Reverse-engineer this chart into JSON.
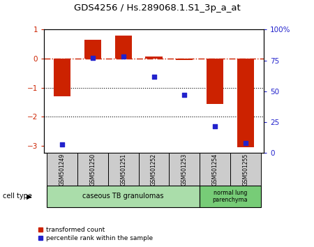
{
  "title": "GDS4256 / Hs.289068.1.S1_3p_a_at",
  "samples": [
    "GSM501249",
    "GSM501250",
    "GSM501251",
    "GSM501252",
    "GSM501253",
    "GSM501254",
    "GSM501255"
  ],
  "red_bars": [
    -1.3,
    0.65,
    0.8,
    0.07,
    -0.05,
    -1.55,
    -3.05
  ],
  "blue_squares_pct": [
    7,
    77,
    78,
    62,
    47,
    22,
    8
  ],
  "ylim_left": [
    -3.25,
    1.0
  ],
  "ylim_right": [
    0,
    100
  ],
  "yticks_left": [
    1,
    0,
    -1,
    -2,
    -3
  ],
  "yticks_right": [
    100,
    75,
    50,
    25,
    0
  ],
  "ytick_labels_right": [
    "100%",
    "75",
    "50",
    "25",
    "0"
  ],
  "dotted_lines": [
    -1,
    -2
  ],
  "red_bar_color": "#cc2200",
  "blue_square_color": "#2222cc",
  "hline_color": "#cc2200",
  "cell_types": [
    {
      "label": "caseous TB granulomas",
      "n_samples": 5,
      "color": "#aaddaa"
    },
    {
      "label": "normal lung\nparenchyma",
      "n_samples": 2,
      "color": "#77cc77"
    }
  ],
  "legend_red": "transformed count",
  "legend_blue": "percentile rank within the sample",
  "cell_type_label": "cell type",
  "xticklabel_bg": "#cccccc",
  "bar_width": 0.55
}
